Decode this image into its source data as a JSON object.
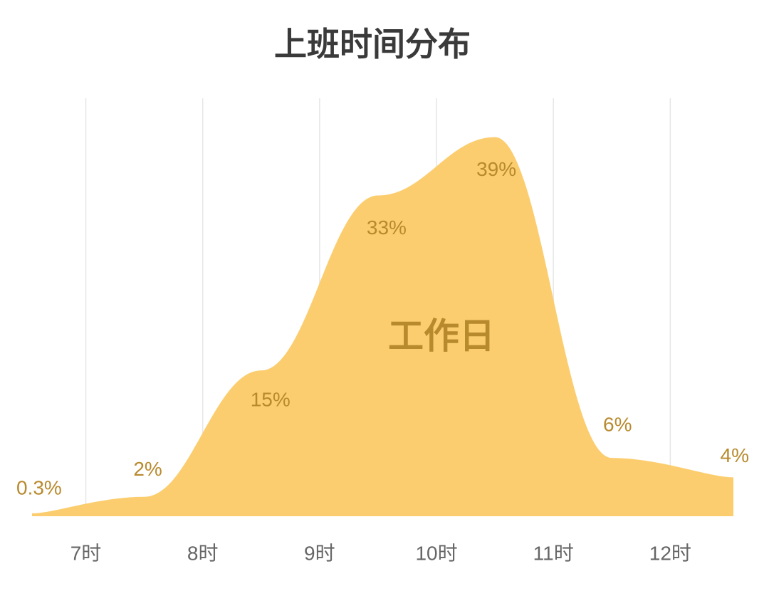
{
  "chart_data": {
    "type": "area",
    "title": "上班时间分布",
    "x": [
      6.54,
      7.5,
      8.5,
      9.5,
      10.5,
      11.5,
      12.54
    ],
    "series": [
      {
        "name": "工作日",
        "color": "#fbcd6e",
        "values": [
          0.3,
          2,
          15,
          33,
          39,
          6,
          4
        ],
        "value_labels": [
          "0.3%",
          "2%",
          "15%",
          "33%",
          "39%",
          "6%",
          "4%"
        ]
      }
    ],
    "xlim": [
      6.54,
      12.54
    ],
    "xticks": [
      {
        "value": 7,
        "label": "7时"
      },
      {
        "value": 8,
        "label": "8时"
      },
      {
        "value": 9,
        "label": "9时"
      },
      {
        "value": 10,
        "label": "10时"
      },
      {
        "value": 11,
        "label": "11时"
      },
      {
        "value": 12,
        "label": "12时"
      }
    ],
    "ylim": [
      0,
      43
    ],
    "grid": true
  }
}
